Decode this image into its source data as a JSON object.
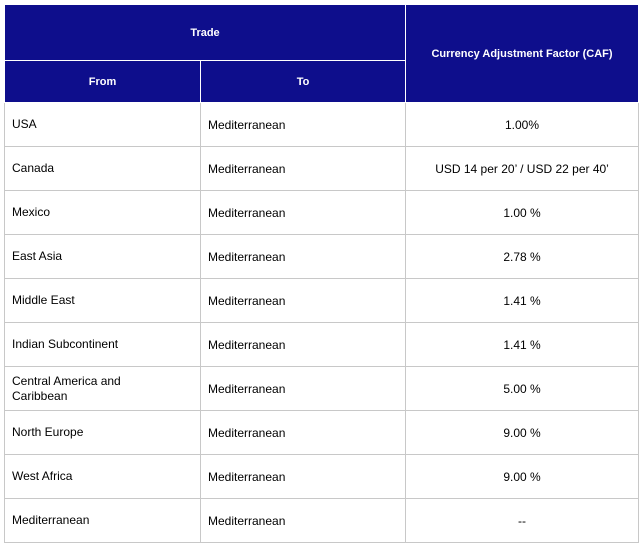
{
  "header": {
    "trade": "Trade",
    "from": "From",
    "to": "To",
    "caf": "Currency Adjustment Factor (CAF)"
  },
  "rows": [
    {
      "from": "USA",
      "to": "Mediterranean",
      "caf": "1.00%"
    },
    {
      "from": "Canada",
      "to": "Mediterranean",
      "caf": "USD 14 per 20’ / USD 22 per 40’"
    },
    {
      "from": "Mexico",
      "to": "Mediterranean",
      "caf": "1.00 %"
    },
    {
      "from": "East Asia",
      "to": "Mediterranean",
      "caf": "2.78 %"
    },
    {
      "from": "Middle East",
      "to": "Mediterranean",
      "caf": "1.41 %"
    },
    {
      "from": "Indian Subcontinent",
      "to": "Mediterranean",
      "caf": "1.41 %"
    },
    {
      "from": "Central America and Caribbean",
      "to": "Mediterranean",
      "caf": "5.00 %"
    },
    {
      "from": "North Europe",
      "to": "Mediterranean",
      "caf": "9.00 %"
    },
    {
      "from": "West Africa",
      "to": "Mediterranean",
      "caf": "9.00 %"
    },
    {
      "from": "Mediterranean",
      "to": "Mediterranean",
      "caf": "--"
    }
  ],
  "colors": {
    "header_bg": "#0e0e8c",
    "header_text": "#ffffff",
    "border": "#c8c8c8"
  }
}
